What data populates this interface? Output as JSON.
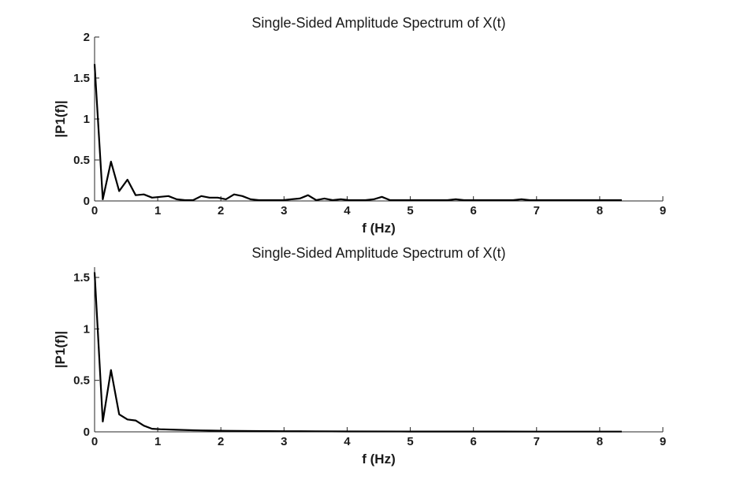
{
  "chart_data": [
    {
      "type": "line",
      "title": "Single-Sided Amplitude Spectrum of X(t)",
      "xlabel": "f (Hz)",
      "ylabel": "|P1(f)|",
      "xlim": [
        0,
        9
      ],
      "ylim": [
        0,
        2
      ],
      "xticks": [
        "0",
        "1",
        "2",
        "3",
        "4",
        "5",
        "6",
        "7",
        "8",
        "9"
      ],
      "yticks": [
        "0",
        "0.5",
        "1",
        "1.5",
        "2"
      ],
      "grid": false,
      "series": [
        {
          "x": [
            0,
            0.13,
            0.26,
            0.39,
            0.52,
            0.65,
            0.78,
            0.91,
            1.04,
            1.17,
            1.3,
            1.43,
            1.56,
            1.69,
            1.82,
            1.95,
            2.08,
            2.21,
            2.34,
            2.47,
            2.6,
            2.73,
            2.86,
            2.99,
            3.12,
            3.25,
            3.38,
            3.51,
            3.64,
            3.77,
            3.9,
            4.03,
            4.16,
            4.29,
            4.42,
            4.55,
            4.68,
            4.81,
            4.94,
            5.07,
            5.2,
            5.33,
            5.46,
            5.59,
            5.72,
            5.85,
            5.98,
            6.11,
            6.24,
            6.37,
            6.5,
            6.63,
            6.76,
            6.89,
            7.02,
            7.15,
            7.28,
            7.41,
            7.54,
            7.67,
            7.8,
            7.93,
            8.06,
            8.19,
            8.35
          ],
          "values": [
            1.67,
            0.02,
            0.48,
            0.12,
            0.26,
            0.07,
            0.08,
            0.04,
            0.05,
            0.06,
            0.02,
            0.01,
            0.01,
            0.06,
            0.04,
            0.04,
            0.02,
            0.08,
            0.06,
            0.02,
            0.01,
            0.01,
            0.01,
            0.01,
            0.02,
            0.03,
            0.07,
            0.01,
            0.03,
            0.01,
            0.02,
            0.01,
            0.01,
            0.01,
            0.02,
            0.05,
            0.01,
            0.01,
            0.01,
            0.01,
            0.01,
            0.01,
            0.01,
            0.01,
            0.02,
            0.01,
            0.01,
            0.01,
            0.01,
            0.01,
            0.01,
            0.01,
            0.02,
            0.01,
            0.01,
            0.01,
            0.01,
            0.01,
            0.01,
            0.01,
            0.01,
            0.01,
            0.01,
            0.01,
            0.01
          ]
        }
      ]
    },
    {
      "type": "line",
      "title": "Single-Sided Amplitude Spectrum of X(t)",
      "xlabel": "f (Hz)",
      "ylabel": "|P1(f)|",
      "xlim": [
        0,
        9
      ],
      "ylim": [
        0,
        1.6
      ],
      "xticks": [
        "0",
        "1",
        "2",
        "3",
        "4",
        "5",
        "6",
        "7",
        "8",
        "9"
      ],
      "yticks": [
        "0",
        "0.5",
        "1",
        "1.5"
      ],
      "grid": false,
      "series": [
        {
          "x": [
            0,
            0.13,
            0.26,
            0.39,
            0.52,
            0.65,
            0.78,
            0.91,
            1.04,
            1.3,
            1.56,
            1.82,
            2.08,
            2.5,
            3,
            3.5,
            4,
            5,
            6,
            7,
            8,
            8.35
          ],
          "values": [
            1.55,
            0.1,
            0.6,
            0.17,
            0.12,
            0.11,
            0.06,
            0.03,
            0.025,
            0.02,
            0.015,
            0.012,
            0.01,
            0.008,
            0.006,
            0.005,
            0.004,
            0.003,
            0.003,
            0.002,
            0.002,
            0.002
          ]
        }
      ]
    }
  ]
}
